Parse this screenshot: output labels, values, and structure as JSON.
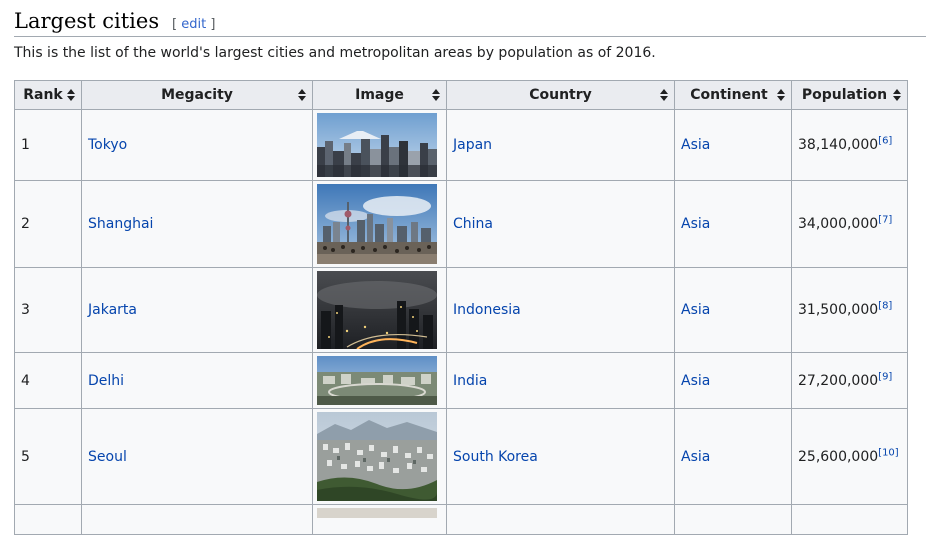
{
  "section": {
    "title": "Largest cities",
    "edit_open": "[",
    "edit_label": "edit",
    "edit_close": "]"
  },
  "intro": "This is the list of the world's largest cities and metropolitan areas by population as of 2016.",
  "table": {
    "headers": [
      "Rank",
      "Megacity",
      "Image",
      "Country",
      "Continent",
      "Population"
    ],
    "rows": [
      {
        "rank": "1",
        "city": "Tokyo",
        "country": "Japan",
        "continent": "Asia",
        "population": "38,140,000",
        "ref": "[6]"
      },
      {
        "rank": "2",
        "city": "Shanghai",
        "country": "China",
        "continent": "Asia",
        "population": "34,000,000",
        "ref": "[7]"
      },
      {
        "rank": "3",
        "city": "Jakarta",
        "country": "Indonesia",
        "continent": "Asia",
        "population": "31,500,000",
        "ref": "[8]"
      },
      {
        "rank": "4",
        "city": "Delhi",
        "country": "India",
        "continent": "Asia",
        "population": "27,200,000",
        "ref": "[9]"
      },
      {
        "rank": "5",
        "city": "Seoul",
        "country": "South Korea",
        "continent": "Asia",
        "population": "25,600,000",
        "ref": "[10]"
      },
      {
        "rank": "",
        "city": "",
        "country": "",
        "continent": "",
        "population": "",
        "ref": ""
      }
    ]
  }
}
